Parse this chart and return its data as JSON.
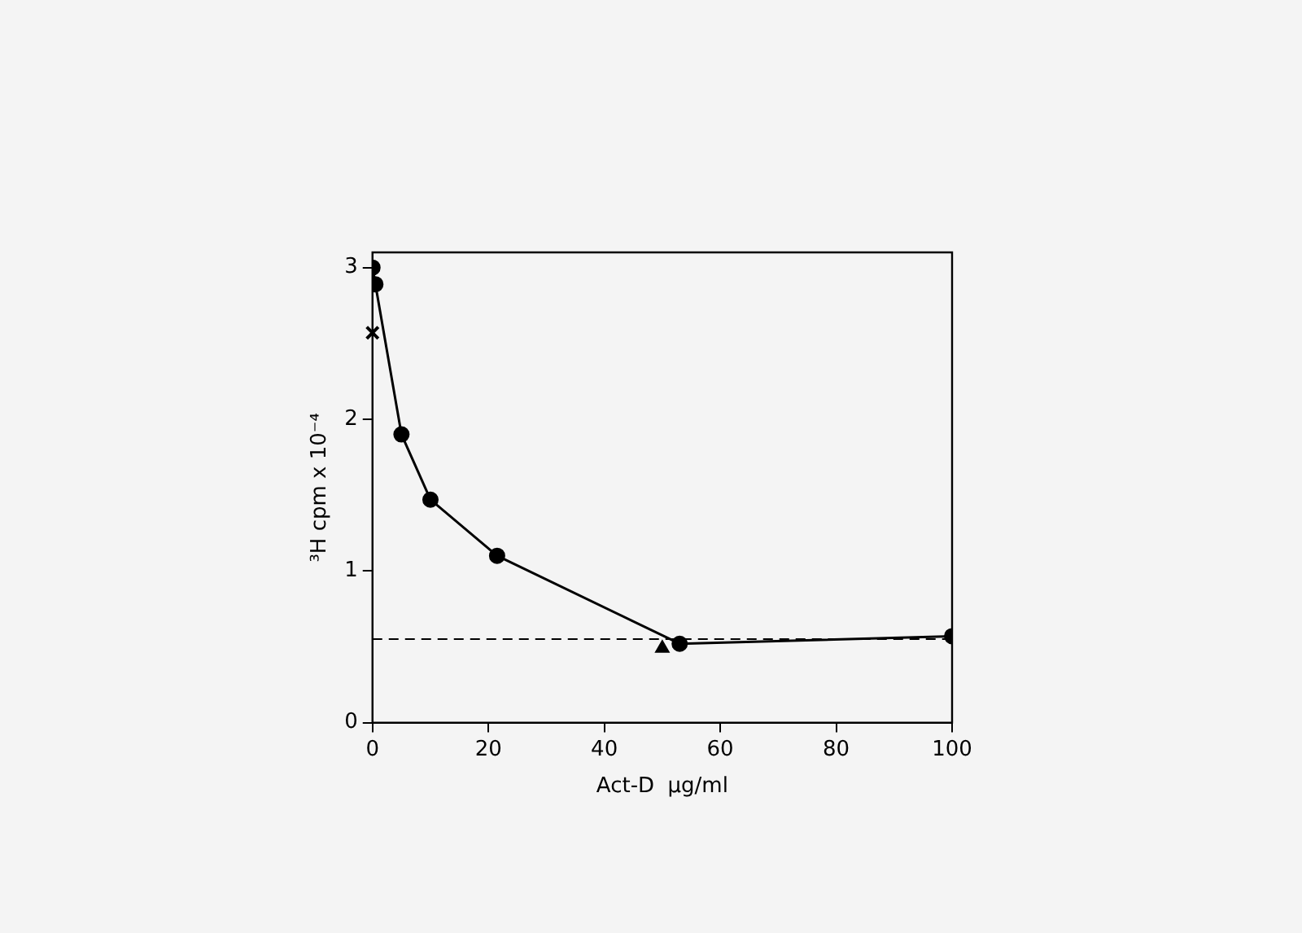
{
  "chart_data": {
    "type": "line",
    "xlabel": "Act-D  µg/ml",
    "ylabel": "³H cpm x 10⁻⁴",
    "xlim": [
      0,
      100
    ],
    "xticks": [
      0,
      20,
      40,
      60,
      80,
      100
    ],
    "ylim": [
      0,
      3.1
    ],
    "yticks": [
      0,
      1,
      2,
      3
    ],
    "grid": false,
    "legend": false,
    "series": [
      {
        "color": "#000000",
        "marker": "circle",
        "line_style": "solid",
        "x": [
          0,
          0.5,
          5,
          10,
          21.5,
          53,
          100
        ],
        "values": [
          3.0,
          2.89,
          1.9,
          1.47,
          1.1,
          0.52,
          0.57
        ]
      },
      {
        "type": "scatter",
        "color": "#000000",
        "marker": "cross",
        "x": [
          0
        ],
        "values": [
          2.57
        ]
      },
      {
        "type": "scatter",
        "color": "#000000",
        "marker": "triangle",
        "x": [
          50
        ],
        "values": [
          0.49
        ]
      }
    ],
    "ref_lines": [
      {
        "axis": "y",
        "value": 0.55,
        "color": "#000000",
        "line_style": "dashed"
      }
    ]
  }
}
